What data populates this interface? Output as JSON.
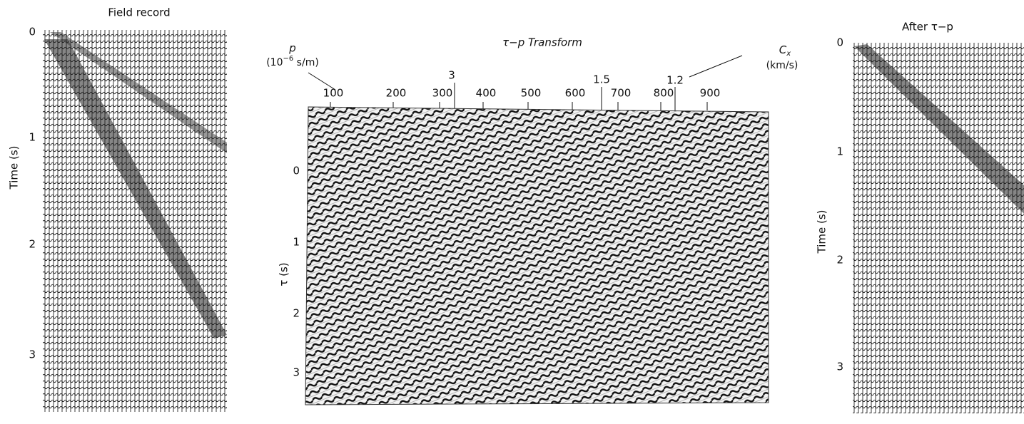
{
  "left_panel": {
    "title": "Field record",
    "y_label": "Time (s)",
    "y_ticks": [
      "0",
      "1",
      "2",
      "3"
    ]
  },
  "middle_panel": {
    "title": "τ−p Transform",
    "p_label": "p",
    "p_unit_start": "(10",
    "p_unit_exp": "−6",
    "p_unit_end": " s/m)",
    "p_ticks": [
      "100",
      "200",
      "300",
      "400",
      "500",
      "600",
      "700",
      "800",
      "900"
    ],
    "cx_label": "C",
    "cx_sub": "x",
    "cx_unit": "(km/s)",
    "cx_ticks": [
      "3",
      "1.5",
      "1.2"
    ],
    "tau_label": "τ (s)",
    "tau_ticks": [
      "0",
      "1",
      "2",
      "3"
    ]
  },
  "right_panel": {
    "title": "After τ−p",
    "y_label": "Time (s)",
    "y_ticks": [
      "0",
      "1",
      "2",
      "3"
    ]
  }
}
